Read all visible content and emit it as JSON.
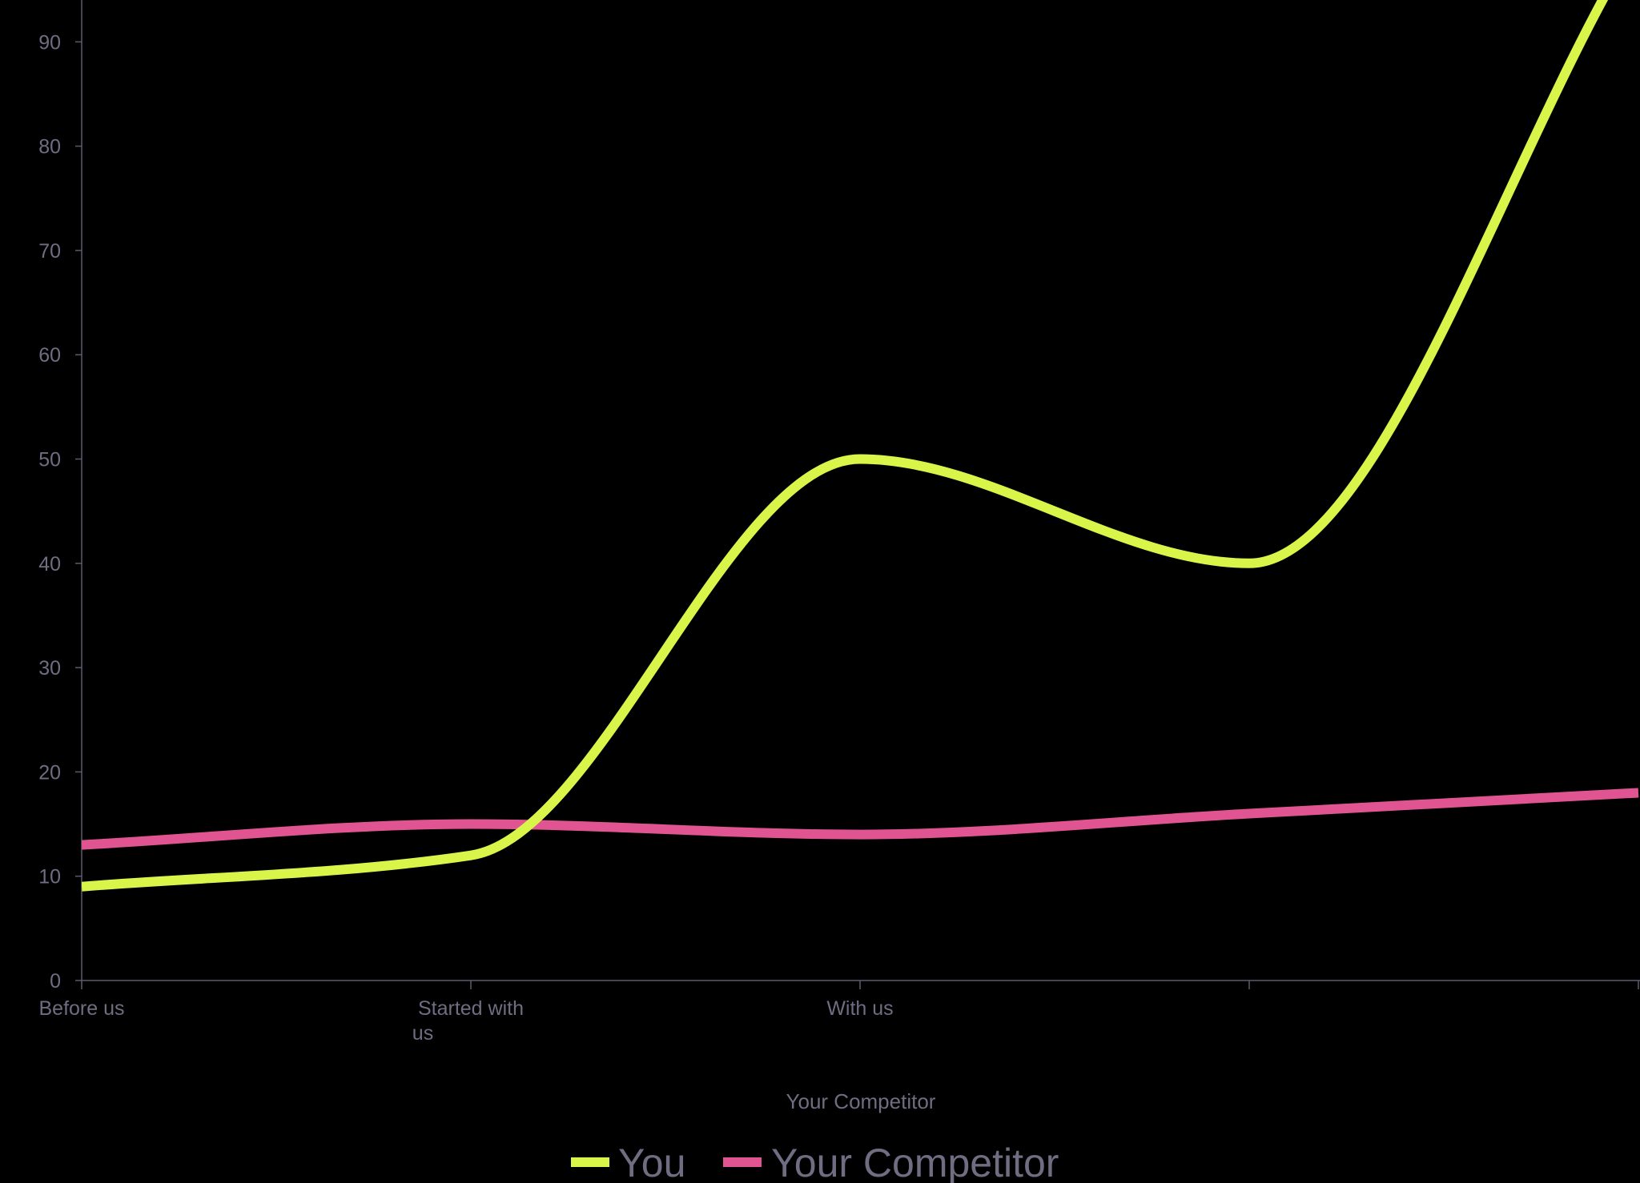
{
  "chart_data": {
    "type": "line",
    "categories": [
      "Before us",
      "Started with us",
      "With us",
      "",
      ""
    ],
    "series": [
      {
        "name": "You",
        "values": [
          9,
          12,
          50,
          40,
          100
        ],
        "color": "#d9f54a"
      },
      {
        "name": "Your Competitor",
        "values": [
          13,
          15,
          14,
          16,
          18
        ],
        "color": "#e05591"
      }
    ],
    "xlabel": "Your Competitor",
    "ylabel": "",
    "ylim": [
      0,
      100
    ],
    "yticks": [
      0,
      10,
      20,
      30,
      40,
      50,
      60,
      70,
      80,
      90
    ],
    "grid": false,
    "legend_position": "bottom-center",
    "smooth": true,
    "colors": {
      "background": "#000000",
      "axis": "#5c5a6e",
      "tick_text": "#6f6d82"
    }
  }
}
